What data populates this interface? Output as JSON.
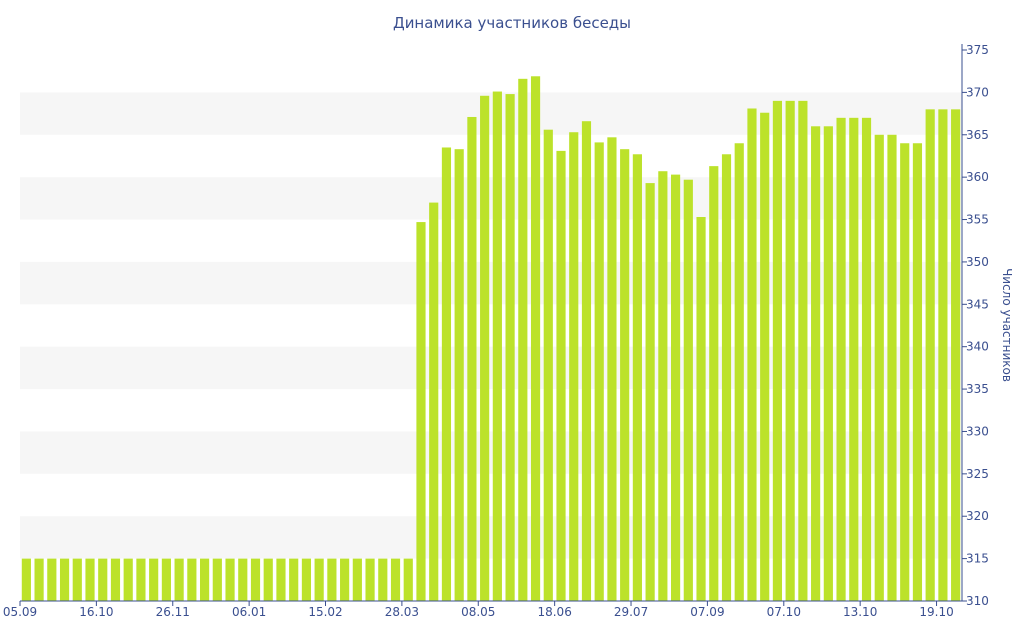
{
  "chart_data": {
    "type": "bar",
    "title": "Динамика участников беседы",
    "xlabel": "",
    "ylabel": "Число участников",
    "ylim": [
      310,
      375
    ],
    "yticks": [
      310,
      315,
      320,
      325,
      330,
      335,
      340,
      345,
      350,
      355,
      360,
      365,
      370,
      375
    ],
    "y_axis_position": "right",
    "grid": "alternating horizontal bands",
    "xtick_labels": [
      {
        "label": "05.09",
        "index": 0
      },
      {
        "label": "16.10",
        "index": 6
      },
      {
        "label": "26.11",
        "index": 12
      },
      {
        "label": "06.01",
        "index": 18
      },
      {
        "label": "15.02",
        "index": 24
      },
      {
        "label": "28.03",
        "index": 30
      },
      {
        "label": "08.05",
        "index": 36
      },
      {
        "label": "18.06",
        "index": 42
      },
      {
        "label": "29.07",
        "index": 48
      },
      {
        "label": "07.09",
        "index": 54
      },
      {
        "label": "07.10",
        "index": 60
      },
      {
        "label": "13.10",
        "index": 66
      },
      {
        "label": "19.10",
        "index": 72
      }
    ],
    "values": [
      315,
      315,
      315,
      315,
      315,
      315,
      315,
      315,
      315,
      315,
      315,
      315,
      315,
      315,
      315,
      315,
      315,
      315,
      315,
      315,
      315,
      315,
      315,
      315,
      315,
      315,
      315,
      315,
      315,
      315,
      315,
      354.7,
      357,
      363.5,
      363.3,
      367.1,
      369.6,
      370.1,
      369.8,
      371.6,
      371.9,
      365.6,
      363.1,
      365.3,
      366.6,
      364.1,
      364.7,
      363.3,
      362.7,
      359.3,
      360.7,
      360.3,
      359.7,
      355.3,
      361.3,
      362.7,
      364,
      368.1,
      367.6,
      369,
      369,
      369,
      366,
      366,
      367,
      367,
      367,
      365,
      365,
      364,
      364,
      368,
      368,
      368
    ],
    "bar_color": "#bce22a",
    "band_color": "#f6f6f6",
    "axis_color": "#3a4f8f"
  }
}
